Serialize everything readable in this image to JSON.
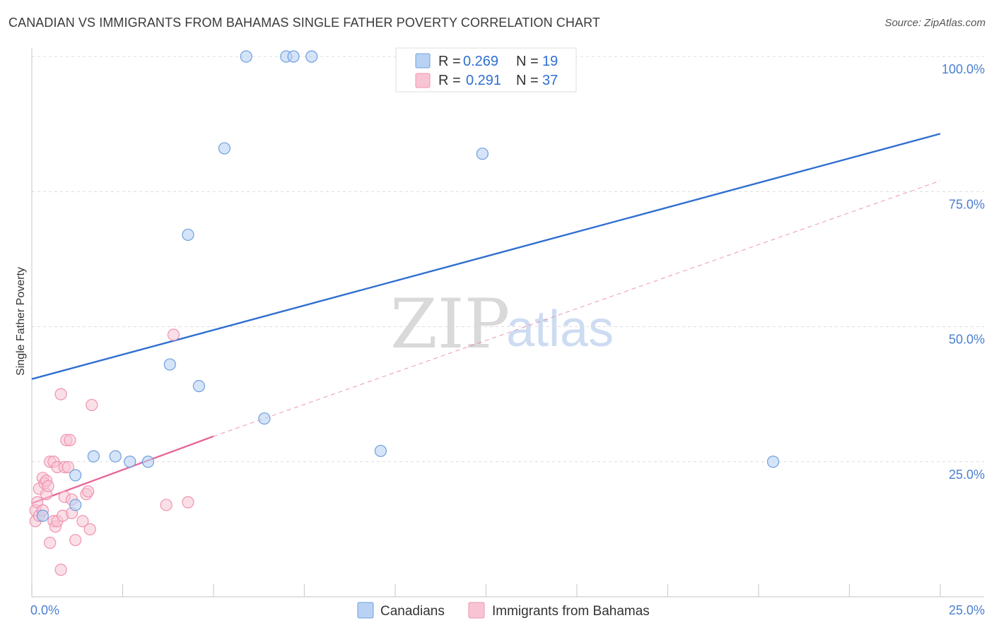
{
  "header": {
    "title": "CANADIAN VS IMMIGRANTS FROM BAHAMAS SINGLE FATHER POVERTY CORRELATION CHART",
    "source": "Source: ZipAtlas.com"
  },
  "watermark": {
    "zip": "ZIP",
    "atlas": "atlas"
  },
  "colors": {
    "canadians_fill": "#b9d2f3",
    "canadians_stroke": "#6f9fdf",
    "canadians_line": "#2f6fd0",
    "bahamas_fill": "#f8c4d3",
    "bahamas_stroke": "#ef93b0",
    "bahamas_line": "#e8669a",
    "accent_text": "#2f6fd0"
  },
  "legend": {
    "rows": [
      {
        "r_label": "R = ",
        "r_value": "0.269",
        "n_label": "N = ",
        "n_value": "19"
      },
      {
        "r_label": "R = ",
        "r_value": "0.291",
        "n_label": "N = ",
        "n_value": "37"
      }
    ]
  },
  "chart_data": {
    "type": "scatter",
    "title": "CANADIAN VS IMMIGRANTS FROM BAHAMAS SINGLE FATHER POVERTY CORRELATION CHART",
    "xlabel": "",
    "ylabel": "Single Father Poverty",
    "xlim": [
      0,
      25
    ],
    "ylim": [
      0,
      100
    ],
    "x_tick_labels": [
      "0.0%",
      "25.0%"
    ],
    "y_ticks": [
      25,
      50,
      75,
      100
    ],
    "y_tick_labels": [
      "25.0%",
      "50.0%",
      "75.0%",
      "100.0%"
    ],
    "grid": true,
    "legend_position": "bottom",
    "series": [
      {
        "name": "Canadians",
        "points": [
          [
            0.3,
            15.0
          ],
          [
            1.2,
            17.0
          ],
          [
            1.2,
            22.5
          ],
          [
            1.7,
            26.0
          ],
          [
            2.3,
            26.0
          ],
          [
            2.7,
            25.0
          ],
          [
            3.2,
            25.0
          ],
          [
            3.8,
            43.0
          ],
          [
            4.3,
            67.0
          ],
          [
            4.6,
            39.0
          ],
          [
            5.3,
            83.0
          ],
          [
            5.9,
            100.0
          ],
          [
            6.4,
            33.0
          ],
          [
            7.0,
            100.0
          ],
          [
            7.2,
            100.0
          ],
          [
            7.7,
            100.0
          ],
          [
            9.6,
            27.0
          ],
          [
            12.4,
            82.0
          ],
          [
            20.4,
            25.0
          ]
        ],
        "trend": {
          "x": [
            0,
            25
          ],
          "y": [
            40.3,
            85.7
          ],
          "style": "solid"
        }
      },
      {
        "name": "Immigrants from Bahamas",
        "points": [
          [
            0.1,
            16.0
          ],
          [
            0.1,
            14.0
          ],
          [
            0.15,
            17.5
          ],
          [
            0.2,
            15.0
          ],
          [
            0.2,
            20.0
          ],
          [
            0.3,
            22.0
          ],
          [
            0.3,
            16.0
          ],
          [
            0.35,
            21.0
          ],
          [
            0.4,
            19.0
          ],
          [
            0.4,
            21.5
          ],
          [
            0.45,
            20.5
          ],
          [
            0.5,
            25.0
          ],
          [
            0.5,
            10.0
          ],
          [
            0.6,
            25.0
          ],
          [
            0.6,
            14.0
          ],
          [
            0.65,
            13.0
          ],
          [
            0.7,
            24.0
          ],
          [
            0.7,
            14.0
          ],
          [
            0.8,
            37.5
          ],
          [
            0.8,
            5.0
          ],
          [
            0.85,
            15.0
          ],
          [
            0.9,
            18.5
          ],
          [
            0.9,
            24.0
          ],
          [
            0.95,
            29.0
          ],
          [
            1.0,
            24.0
          ],
          [
            1.05,
            29.0
          ],
          [
            1.1,
            15.5
          ],
          [
            1.1,
            18.0
          ],
          [
            1.2,
            10.5
          ],
          [
            1.4,
            14.0
          ],
          [
            1.5,
            19.0
          ],
          [
            1.55,
            19.5
          ],
          [
            1.6,
            12.5
          ],
          [
            1.65,
            35.5
          ],
          [
            3.7,
            17.0
          ],
          [
            3.9,
            48.5
          ],
          [
            4.3,
            17.5
          ]
        ],
        "trend": {
          "x": [
            0,
            5.0
          ],
          "y": [
            17.3,
            29.7
          ],
          "style": "solid"
        },
        "trend_extension": {
          "x": [
            5.0,
            25
          ],
          "y": [
            29.7,
            77.0
          ],
          "style": "dashed"
        }
      }
    ]
  }
}
